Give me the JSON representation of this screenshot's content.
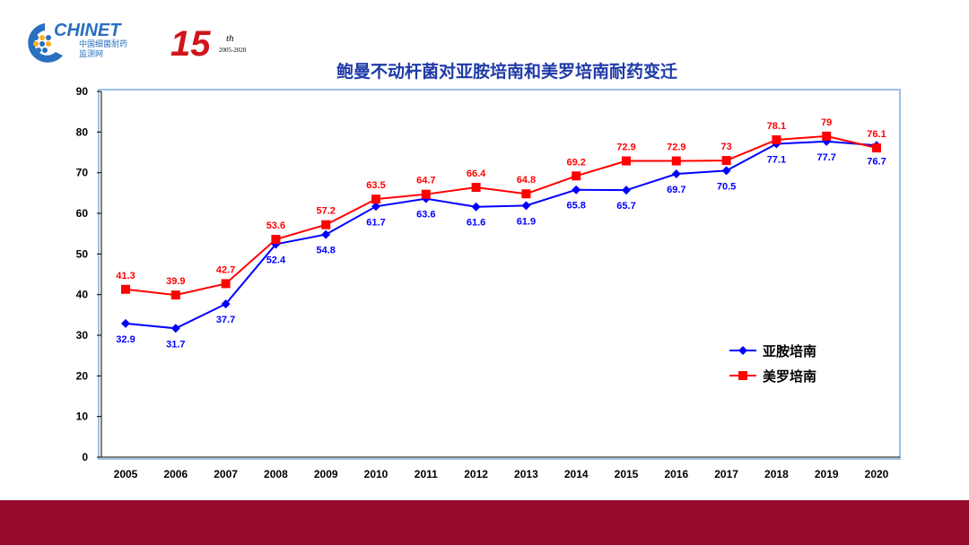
{
  "logo": {
    "brand": "CHINET",
    "subtitle": "中国细菌耐药",
    "subtitle2": "监测网",
    "anniversary": "15",
    "anniversary_suffix": "th",
    "years": "2005-2020"
  },
  "colors": {
    "title": "#1f3aa8",
    "blue": "#0000ff",
    "red": "#ff0000",
    "footer": "#960b2d",
    "frame": "#9dc3e6"
  },
  "chart_data": {
    "type": "line",
    "title": "鲍曼不动杆菌对亚胺培南和美罗培南耐药变迁",
    "xlabel": "",
    "ylabel": "",
    "ylim": [
      0,
      90
    ],
    "yticks": [
      0,
      10,
      20,
      30,
      40,
      50,
      60,
      70,
      80,
      90
    ],
    "categories": [
      "2005",
      "2006",
      "2007",
      "2008",
      "2009",
      "2010",
      "2011",
      "2012",
      "2013",
      "2014",
      "2015",
      "2016",
      "2017",
      "2018",
      "2019",
      "2020"
    ],
    "legend_position": "right",
    "series": [
      {
        "name": "亚胺培南",
        "color": "#0000ff",
        "marker": "diamond",
        "label_position": "below",
        "values": [
          32.9,
          31.7,
          37.7,
          52.4,
          54.8,
          61.7,
          63.6,
          61.6,
          61.9,
          65.8,
          65.7,
          69.7,
          70.5,
          77.1,
          77.7,
          76.7
        ]
      },
      {
        "name": "美罗培南",
        "color": "#ff0000",
        "marker": "square",
        "label_position": "above",
        "values": [
          41.3,
          39.9,
          42.7,
          53.6,
          57.2,
          63.5,
          64.7,
          66.4,
          64.8,
          69.2,
          72.9,
          72.9,
          73,
          78.1,
          79,
          76.1
        ]
      }
    ]
  }
}
